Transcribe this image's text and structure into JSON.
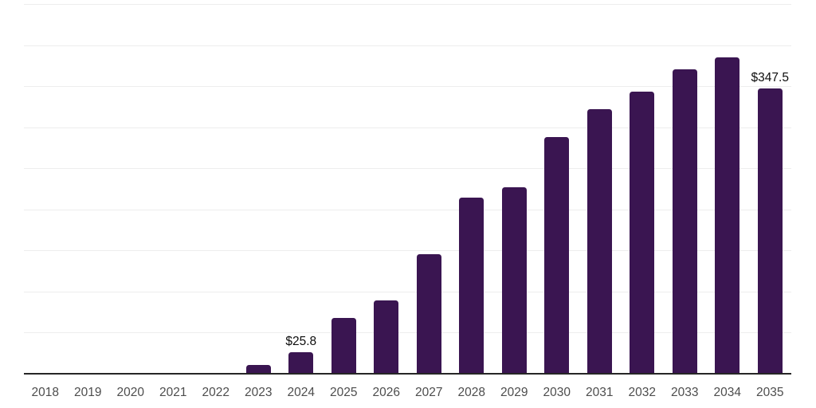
{
  "page": {
    "background_color": "#ffffff"
  },
  "chart_data": {
    "type": "bar",
    "title": "",
    "xlabel": "",
    "ylabel": "",
    "categories": [
      "2018",
      "2019",
      "2020",
      "2021",
      "2022",
      "2023",
      "2024",
      "2025",
      "2026",
      "2027",
      "2028",
      "2029",
      "2030",
      "2031",
      "2032",
      "2033",
      "2034",
      "2035"
    ],
    "values": [
      0,
      0,
      0,
      0,
      0,
      11,
      25.8,
      68,
      89,
      145,
      214,
      227,
      288,
      322,
      343,
      370,
      385,
      347.5
    ],
    "data_labels": [
      {
        "category": "2024",
        "text": "$25.8"
      },
      {
        "category": "2035",
        "text": "$347.5"
      }
    ],
    "ylim": [
      0,
      450
    ],
    "gridline_step": 50,
    "grid": true,
    "legend": "none",
    "y_axis_labels_visible": false,
    "colors": {
      "bar": "#3a1551",
      "gridline": "#ededed",
      "axis_line": "#262626",
      "tick_label": "#4d4d4d",
      "data_label": "#0d0d0d"
    }
  }
}
